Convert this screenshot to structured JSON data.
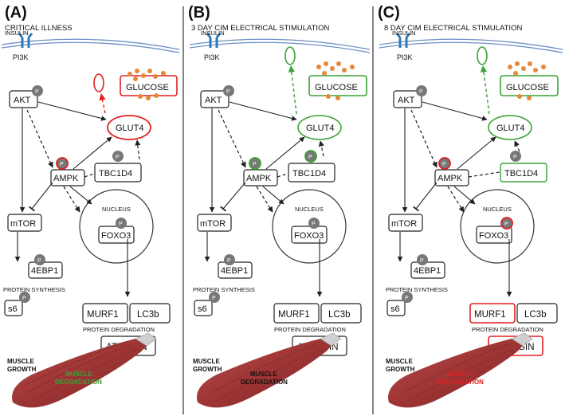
{
  "panels": [
    {
      "letter": "(A)",
      "title": "CRITICAL ILLNESS",
      "labels": {
        "insulin": "INSULIN",
        "pi3k": "PI3K",
        "akt": "AKT",
        "glucose": "GLUCOSE",
        "glut4": "GLUT4",
        "ampk": "AMPK",
        "tbc1d4": "TBC1D4",
        "mtor": "mTOR",
        "nucleus": "NUCLEUS",
        "foxo3": "FOXO3",
        "ebp1": "4EBP1",
        "protein_synthesis": "PROTEIN SYNTHESIS",
        "s6": "s6",
        "murf1": "MURF1",
        "lc3b": "LC3b",
        "protein_degradation": "PROTEIN DEGRADATION",
        "atrogin": "ATROGIN",
        "muscle": "MUSCLE",
        "growth": "GROWTH",
        "degradation": "DEGRADATION",
        "p": "P"
      },
      "colors": {
        "glucose": "#e02020",
        "glut4": "#e02020",
        "vesicle": "#e02020",
        "degradation_text": "#3aa335"
      }
    },
    {
      "letter": "(B)",
      "title": "3 DAY CIM ELECTRICAL STIMULATION",
      "labels": {
        "insulin": "INSULIN",
        "pi3k": "PI3K",
        "akt": "AKT",
        "glucose": "GLUCOSE",
        "glut4": "GLUT4",
        "ampk": "AMPK",
        "tbc1d4": "TBC1D4",
        "mtor": "mTOR",
        "nucleus": "NUCLEUS",
        "foxo3": "FOXO3",
        "ebp1": "4EBP1",
        "protein_synthesis": "PROTEIN SYNTHESIS",
        "s6": "s6",
        "murf1": "MURF1",
        "lc3b": "LC3b",
        "protein_degradation": "PROTEIN DEGRADATION",
        "atrogin": "ATROGIN",
        "muscle": "MUSCLE",
        "growth": "GROWTH",
        "degradation": "DEGRADATION",
        "p": "P"
      },
      "colors": {
        "glucose": "#3aa335",
        "glut4": "#3aa335",
        "vesicle": "#3aa335",
        "degradation_text": "#111111"
      }
    },
    {
      "letter": "(C)",
      "title": "8 DAY CIM  ELECTRICAL STIMULATION",
      "labels": {
        "insulin": "INSULIN",
        "pi3k": "PI3K",
        "akt": "AKT",
        "glucose": "GLUCOSE",
        "glut4": "GLUT4",
        "ampk": "AMPK",
        "tbc1d4": "TBC1D4",
        "mtor": "mTOR",
        "nucleus": "NUCLEUS",
        "foxo3": "FOXO3",
        "ebp1": "4EBP1",
        "protein_synthesis": "PROTEIN SYNTHESIS",
        "s6": "s6",
        "murf1": "MURF1",
        "lc3b": "LC3b",
        "protein_degradation": "PROTEIN DEGRADATION",
        "atrogin": "ATROGIN",
        "muscle": "MUSCLE",
        "growth": "GROWTH",
        "degradation": "DEGRADATION",
        "p": "P"
      },
      "colors": {
        "glucose": "#3aa335",
        "glut4": "#3aa335",
        "vesicle": "#3aa335",
        "degradation_text": "#e02020"
      }
    }
  ]
}
